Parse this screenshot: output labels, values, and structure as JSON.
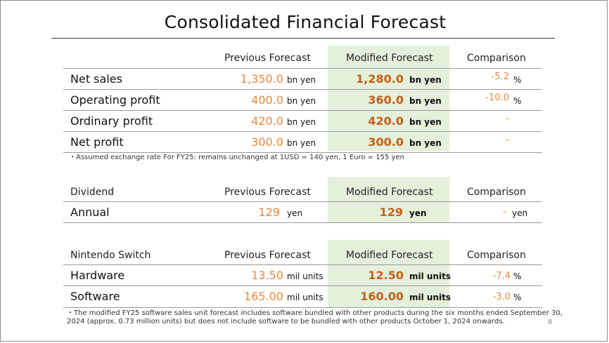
{
  "title": "Consolidated Financial Forecast",
  "page_number": "8",
  "financial": {
    "col_prev": "Previous Forecast",
    "col_mod": "Modified Forecast",
    "col_cmp": "Comparison",
    "rows": [
      {
        "label": "Net sales",
        "prev": "1,350.0",
        "prev_unit": "bn yen",
        "mod": "1,280.0",
        "mod_unit": "bn yen",
        "cmp": "-5.2",
        "cmp_unit": "%"
      },
      {
        "label": "Operating profit",
        "prev": "400.0",
        "prev_unit": "bn yen",
        "mod": "360.0",
        "mod_unit": "bn yen",
        "cmp": "-10.0",
        "cmp_unit": "%"
      },
      {
        "label": "Ordinary profit",
        "prev": "420.0",
        "prev_unit": "bn yen",
        "mod": "420.0",
        "mod_unit": "bn yen",
        "cmp": "-",
        "cmp_unit": ""
      },
      {
        "label": "Net profit",
        "prev": "300.0",
        "prev_unit": "bn yen",
        "mod": "300.0",
        "mod_unit": "bn yen",
        "cmp": "-",
        "cmp_unit": ""
      }
    ],
    "note": "・Assumed exchange rate For FY25: remains unchanged at 1USD = 140 yen, 1 Euro = 155 yen"
  },
  "dividend": {
    "section": "Dividend",
    "col_prev": "Previous Forecast",
    "col_mod": "Modified Forecast",
    "col_cmp": "Comparison",
    "rows": [
      {
        "label": "Annual",
        "prev": "129",
        "prev_unit": "yen",
        "mod": "129",
        "mod_unit": "yen",
        "cmp": "-",
        "cmp_unit": "yen"
      }
    ]
  },
  "switch": {
    "section": "Nintendo Switch",
    "col_prev": "Previous Forecast",
    "col_mod": "Modified Forecast",
    "col_cmp": "Comparison",
    "rows": [
      {
        "label": "Hardware",
        "prev": "13.50",
        "prev_unit": "mil units",
        "mod": "12.50",
        "mod_unit": "mil units",
        "cmp": "-7.4",
        "cmp_unit": "%"
      },
      {
        "label": "Software",
        "prev": "165.00",
        "prev_unit": "mil units",
        "mod": "160.00",
        "mod_unit": "mil units",
        "cmp": "-3.0",
        "cmp_unit": "%"
      }
    ],
    "note_line1": "・The modified FY25 software sales unit forecast includes software bundled with other products during the six months ended September 30,",
    "note_line2": "2024 (approx. 0.73 million units) but does not include software to be bundled with other products October 1, 2024 onwards."
  }
}
